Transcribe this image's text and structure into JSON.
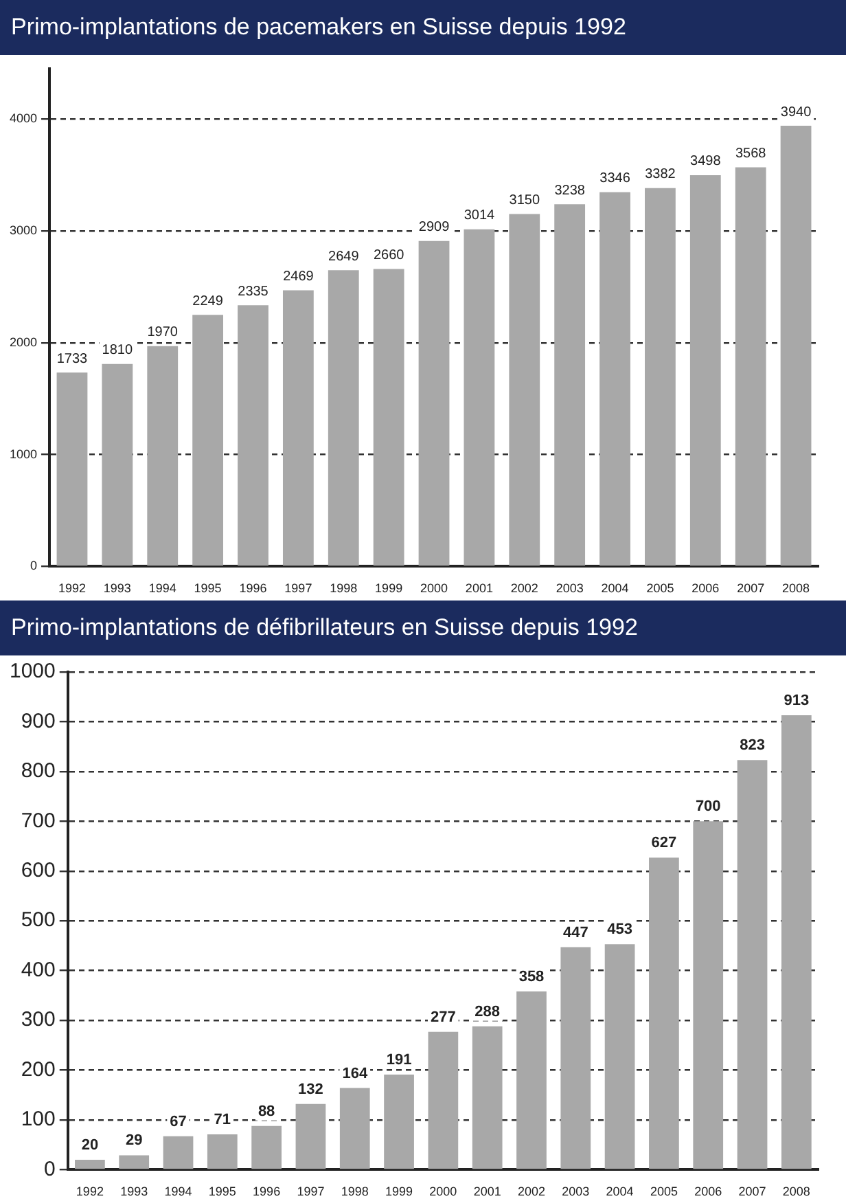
{
  "chart_data": [
    {
      "type": "bar",
      "title": "Primo-implantations de pacemakers en Suisse depuis 1992",
      "categories": [
        "1992",
        "1993",
        "1994",
        "1995",
        "1996",
        "1997",
        "1998",
        "1999",
        "2000",
        "2001",
        "2002",
        "2003",
        "2004",
        "2005",
        "2006",
        "2007",
        "2008"
      ],
      "values": [
        1733,
        1810,
        1970,
        2249,
        2335,
        2469,
        2649,
        2660,
        2909,
        3014,
        3150,
        3238,
        3346,
        3382,
        3498,
        3568,
        3940
      ],
      "color": "#a8a8a8",
      "ylim": [
        0,
        4450
      ],
      "yticks": [
        0,
        1000,
        2000,
        3000,
        4000
      ],
      "grid": "y",
      "data_labels": true
    },
    {
      "type": "bar",
      "title": "Primo-implantations de défibrillateurs en Suisse depuis 1992",
      "categories": [
        "1992",
        "1993",
        "1994",
        "1995",
        "1996",
        "1997",
        "1998",
        "1999",
        "2000",
        "2001",
        "2002",
        "2003",
        "2004",
        "2005",
        "2006",
        "2007",
        "2008"
      ],
      "values": [
        20,
        29,
        67,
        71,
        88,
        132,
        164,
        191,
        277,
        288,
        358,
        447,
        453,
        627,
        700,
        823,
        913
      ],
      "color": "#a8a8a8",
      "ylim": [
        0,
        1000
      ],
      "yticks": [
        0,
        100,
        200,
        300,
        400,
        500,
        600,
        700,
        800,
        900,
        1000
      ],
      "grid": "y",
      "data_labels": true
    }
  ]
}
